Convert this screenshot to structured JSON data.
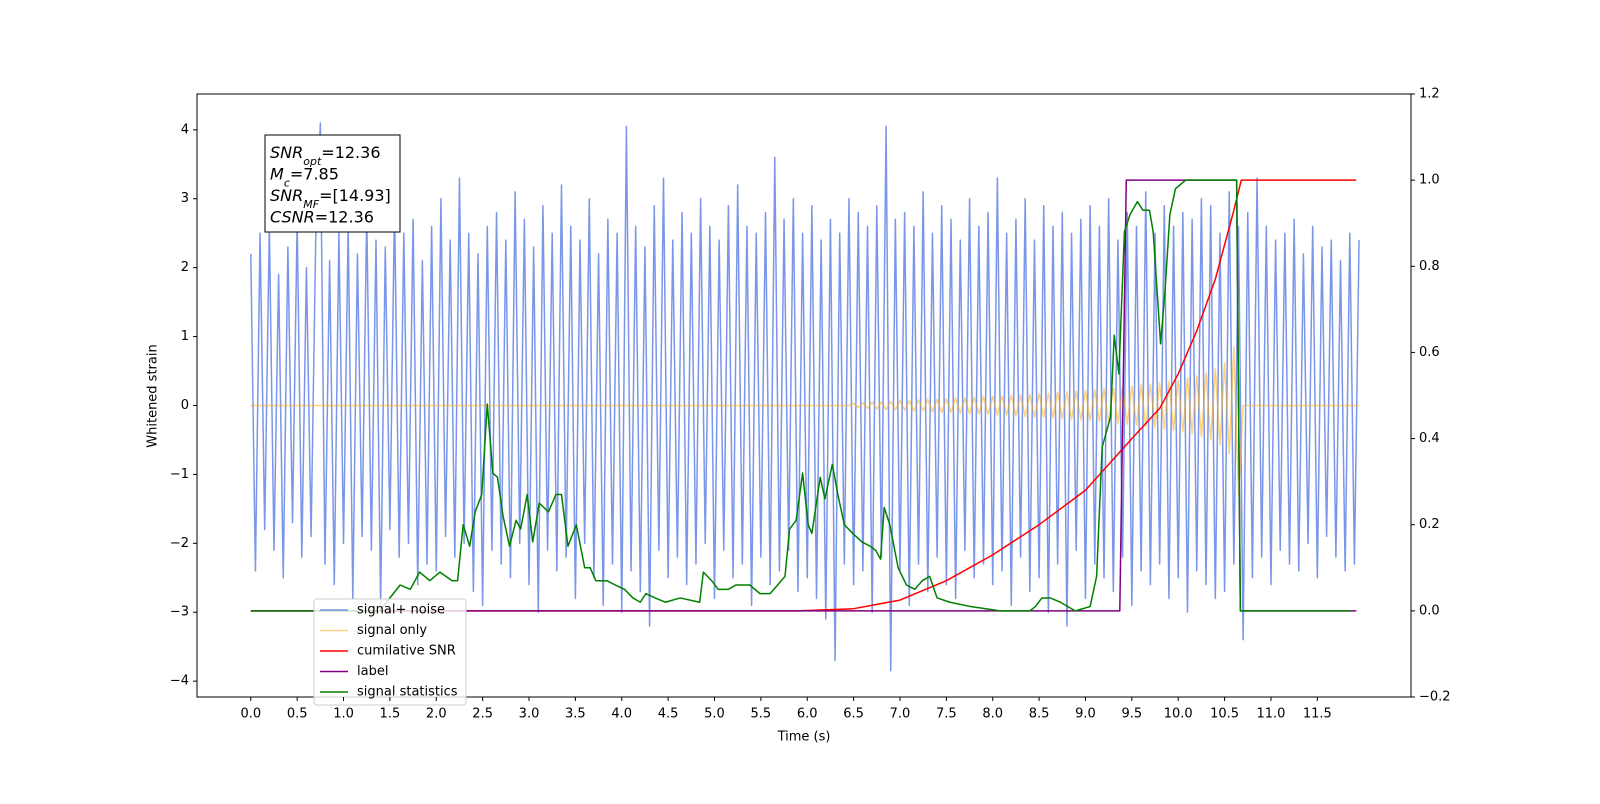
{
  "chart_data": {
    "type": "line",
    "xlabel": "Time (s)",
    "ylabel": "Whitened strain",
    "xlim": [
      -0.58,
      12.51
    ],
    "ylim": [
      -4.23,
      4.52
    ],
    "y2lim": [
      -0.2,
      1.2
    ],
    "xticks": [
      {
        "value": 0,
        "label": "0.0"
      },
      0.5,
      {
        "value": 1,
        "label": "1.0"
      },
      1.5,
      {
        "value": 2,
        "label": "2.0"
      },
      2.5,
      {
        "value": 3,
        "label": "3.0"
      },
      3.5,
      {
        "value": 4,
        "label": "4.0"
      },
      4.5,
      {
        "value": 5,
        "label": "5.0"
      },
      5.5,
      {
        "value": 6,
        "label": "6.0"
      },
      6.5,
      {
        "value": 7,
        "label": "7.0"
      },
      7.5,
      {
        "value": 8,
        "label": "8.0"
      },
      8.5,
      {
        "value": 9,
        "label": "9.0"
      },
      9.5,
      {
        "value": 10,
        "label": "10.0"
      },
      10.5,
      {
        "value": 11,
        "label": "11.0"
      },
      11.5
    ],
    "yticks": [
      {
        "value": -4,
        "label": "−4"
      },
      {
        "value": -3,
        "label": "−3"
      },
      {
        "value": -2,
        "label": "−2"
      },
      {
        "value": -1,
        "label": "−1"
      },
      0,
      1,
      2,
      3,
      4
    ],
    "y2ticks": [
      {
        "value": -0.2,
        "label": "−0.2"
      },
      {
        "value": 0,
        "label": "0.0"
      },
      0.2,
      0.4,
      0.6,
      0.8,
      {
        "value": 1,
        "label": "1.0"
      },
      {
        "value": 1.2,
        "label": "1.2"
      }
    ],
    "legend": "lower left",
    "annotation": [
      {
        "name": "SNR",
        "sub": "opt",
        "text": "=12.36"
      },
      {
        "name": "M",
        "sub": "c",
        "text": "=7.85"
      },
      {
        "name": "SNR",
        "sub": "MF",
        "text": "=[14.93]"
      },
      {
        "name": "CSNR",
        "text": "=12.36"
      }
    ],
    "x": [
      0,
      0.05,
      0.1,
      0.15,
      0.2,
      0.25,
      0.3,
      0.35,
      0.4,
      0.45,
      0.5,
      0.55,
      0.6,
      0.65,
      0.7,
      0.75,
      0.8,
      0.85,
      0.9,
      0.95,
      1,
      1.05,
      1.1,
      1.15,
      1.2,
      1.25,
      1.3,
      1.35,
      1.4,
      1.45,
      1.5,
      1.55,
      1.6,
      1.65,
      1.7,
      1.75,
      1.8,
      1.85,
      1.9,
      1.95,
      2,
      2.05,
      2.1,
      2.15,
      2.2,
      2.25,
      2.3,
      2.35,
      2.4,
      2.45,
      2.5,
      2.55,
      2.6,
      2.65,
      2.7,
      2.75,
      2.8,
      2.85,
      2.9,
      2.95,
      3,
      3.05,
      3.1,
      3.15,
      3.2,
      3.25,
      3.3,
      3.35,
      3.4,
      3.45,
      3.5,
      3.55,
      3.6,
      3.65,
      3.7,
      3.75,
      3.8,
      3.85,
      3.9,
      3.95,
      4,
      4.05,
      4.1,
      4.15,
      4.2,
      4.25,
      4.3,
      4.35,
      4.4,
      4.45,
      4.5,
      4.55,
      4.6,
      4.65,
      4.7,
      4.75,
      4.8,
      4.85,
      4.9,
      4.95,
      5,
      5.05,
      5.1,
      5.15,
      5.2,
      5.25,
      5.3,
      5.35,
      5.4,
      5.45,
      5.5,
      5.55,
      5.6,
      5.65,
      5.7,
      5.75,
      5.8,
      5.85,
      5.9,
      5.95,
      6,
      6.05,
      6.1,
      6.15,
      6.2,
      6.25,
      6.3,
      6.35,
      6.4,
      6.45,
      6.5,
      6.55,
      6.6,
      6.65,
      6.7,
      6.75,
      6.8,
      6.85,
      6.9,
      6.95,
      7,
      7.05,
      7.1,
      7.15,
      7.2,
      7.25,
      7.3,
      7.35,
      7.4,
      7.45,
      7.5,
      7.55,
      7.6,
      7.65,
      7.7,
      7.75,
      7.8,
      7.85,
      7.9,
      7.95,
      8,
      8.05,
      8.1,
      8.15,
      8.2,
      8.25,
      8.3,
      8.35,
      8.4,
      8.45,
      8.5,
      8.55,
      8.6,
      8.65,
      8.7,
      8.75,
      8.8,
      8.85,
      8.9,
      8.95,
      9,
      9.05,
      9.1,
      9.15,
      9.2,
      9.25,
      9.3,
      9.35,
      9.4,
      9.45,
      9.5,
      9.55,
      9.6,
      9.65,
      9.7,
      9.75,
      9.8,
      9.85,
      9.9,
      9.95,
      10,
      10.05,
      10.1,
      10.15,
      10.2,
      10.25,
      10.3,
      10.35,
      10.4,
      10.45,
      10.5,
      10.55,
      10.6,
      10.65,
      10.7,
      10.75,
      10.8,
      10.85,
      10.9,
      10.95,
      11,
      11.05,
      11.1,
      11.15,
      11.2,
      11.25,
      11.3,
      11.35,
      11.4,
      11.45,
      11.5,
      11.55,
      11.6,
      11.65,
      11.7,
      11.75,
      11.8,
      11.85,
      11.9,
      11.95
    ],
    "series": [
      {
        "name": "signal+ noise",
        "color": "royalblue",
        "alpha": 0.7,
        "values": [
          2.2,
          -2.4,
          2.5,
          -1.8,
          2.6,
          -2.1,
          1.9,
          -2.5,
          2.3,
          -1.7,
          2.7,
          -2.2,
          2.0,
          -1.9,
          2.4,
          4.1,
          -2.3,
          2.1,
          -2.6,
          2.5,
          -2.0,
          2.6,
          -2.8,
          2.2,
          -1.9,
          2.8,
          -2.1,
          2.4,
          -2.9,
          2.3,
          -1.8,
          2.9,
          -2.2,
          2.5,
          -2.0,
          2.7,
          -2.6,
          2.1,
          -2.3,
          2.6,
          -2.4,
          3.0,
          -1.9,
          2.4,
          -2.2,
          3.3,
          -2.0,
          2.5,
          -2.7,
          2.2,
          -2.9,
          2.6,
          -2.1,
          2.8,
          -2.3,
          2.4,
          -2.5,
          3.1,
          -2.0,
          2.7,
          -2.6,
          2.3,
          -3.0,
          2.9,
          -2.1,
          2.5,
          -2.4,
          3.2,
          -2.2,
          2.6,
          -2.8,
          2.4,
          -2.0,
          3.0,
          -2.5,
          2.2,
          -2.9,
          2.7,
          -2.3,
          2.5,
          -3.0,
          4.05,
          -2.4,
          2.6,
          -2.7,
          2.3,
          -3.2,
          2.9,
          -2.1,
          3.3,
          -2.5,
          2.4,
          -2.2,
          2.8,
          -2.6,
          2.5,
          -2.3,
          3.0,
          -2.0,
          2.6,
          -2.8,
          2.4,
          -2.1,
          2.9,
          -2.5,
          3.2,
          -2.3,
          2.6,
          -2.9,
          2.5,
          -2.2,
          2.8,
          -2.6,
          3.6,
          -2.4,
          2.7,
          -2.1,
          3.0,
          -2.7,
          2.5,
          -2.5,
          2.9,
          -2.8,
          2.4,
          -3.1,
          2.7,
          -3.7,
          2.5,
          -2.3,
          3.0,
          -2.6,
          2.8,
          -2.4,
          2.6,
          -3.0,
          2.9,
          -2.2,
          4.05,
          -3.85,
          2.7,
          -2.4,
          2.8,
          -2.9,
          2.6,
          -2.3,
          3.1,
          -2.7,
          2.5,
          -2.2,
          2.9,
          -2.6,
          2.7,
          -2.8,
          2.4,
          -2.1,
          3.0,
          -2.5,
          2.6,
          -2.3,
          2.8,
          -2.6,
          3.3,
          -2.4,
          2.5,
          -2.9,
          2.7,
          -2.2,
          3.0,
          -2.7,
          2.4,
          -2.5,
          2.9,
          -3.0,
          2.6,
          -2.3,
          2.8,
          -3.2,
          2.5,
          -2.1,
          2.7,
          -2.8,
          2.9,
          -2.3,
          2.6,
          -2.5,
          3.0,
          -2.7,
          2.4,
          -2.2,
          2.8,
          -2.9,
          2.6,
          -2.4,
          3.1,
          -2.6,
          2.5,
          -2.3,
          2.9,
          -2.8,
          2.6,
          -2.5,
          2.8,
          -3.0,
          2.7,
          -2.4,
          3.0,
          -2.6,
          2.9,
          -2.8,
          2.5,
          -2.7,
          3.1,
          -2.3,
          2.6,
          -3.4,
          2.8,
          -2.5,
          3.3,
          -2.2,
          2.6,
          -2.6,
          2.4,
          -2.1,
          2.5,
          -2.3,
          2.7,
          -2.4,
          2.2,
          -2.0,
          2.6,
          -2.5,
          2.3,
          -1.9,
          2.4,
          -2.2,
          2.1,
          -2.4,
          2.5,
          -2.3,
          2.4
        ]
      },
      {
        "name": "signal only",
        "color": "orange",
        "alpha": 0.5,
        "values": [
          0,
          0,
          0,
          0,
          0,
          0,
          0,
          0,
          0,
          0,
          0,
          0,
          0,
          0,
          0,
          0,
          0,
          0,
          0,
          0,
          0,
          0,
          0,
          0,
          0,
          0,
          0,
          0,
          0,
          0,
          0,
          0,
          0,
          0,
          0,
          0,
          0,
          0,
          0,
          0,
          0,
          0,
          0,
          0,
          0,
          0,
          0,
          0,
          0,
          0,
          0,
          0,
          0,
          0,
          0,
          0,
          0,
          0,
          0,
          0,
          0,
          0,
          0,
          0,
          0,
          0,
          0,
          0,
          0,
          0,
          0,
          0,
          0,
          0,
          0,
          0,
          0,
          0,
          0,
          0,
          0,
          0,
          0,
          0,
          0,
          0,
          0,
          0,
          0,
          0,
          0,
          0,
          0,
          0,
          0,
          0,
          0,
          0,
          0,
          0,
          0,
          0,
          0,
          0,
          0,
          0,
          0,
          0,
          0,
          0,
          0,
          0,
          0,
          0,
          0,
          0,
          0,
          0,
          0,
          0,
          0,
          0,
          0,
          0,
          0,
          0,
          0,
          0,
          0,
          0,
          0.03,
          -0.03,
          0.04,
          -0.04,
          0.05,
          -0.05,
          0.05,
          -0.06,
          0.06,
          -0.06,
          0.07,
          -0.07,
          0.07,
          -0.08,
          0.08,
          -0.08,
          0.09,
          -0.09,
          0.09,
          -0.1,
          0.1,
          -0.1,
          0.11,
          -0.11,
          0.11,
          -0.12,
          0.12,
          -0.12,
          0.13,
          -0.13,
          0.13,
          -0.14,
          0.14,
          -0.14,
          0.15,
          -0.15,
          0.15,
          -0.16,
          0.16,
          -0.17,
          0.17,
          -0.17,
          0.18,
          -0.18,
          0.19,
          -0.19,
          0.2,
          -0.2,
          0.21,
          -0.21,
          0.22,
          -0.22,
          0.23,
          -0.23,
          0.24,
          -0.25,
          0.25,
          -0.26,
          0.27,
          -0.27,
          0.28,
          -0.29,
          0.3,
          -0.3,
          0.31,
          -0.32,
          0.33,
          -0.34,
          0.35,
          -0.36,
          0.37,
          -0.38,
          0.4,
          -0.41,
          0.43,
          -0.45,
          0.47,
          -0.5,
          0.53,
          -0.57,
          0.62,
          -0.7,
          0.85,
          -1.3,
          0,
          0,
          0,
          0,
          0,
          0,
          0,
          0,
          0,
          0,
          0,
          0,
          0,
          0,
          0,
          0,
          0,
          0,
          0,
          0,
          0,
          0,
          0,
          0,
          0,
          0
        ]
      },
      {
        "name": "cumilative SNR",
        "color": "red",
        "axis": "y2",
        "x": [
          0,
          5.9,
          6.5,
          7.0,
          7.5,
          8.0,
          8.5,
          9.0,
          9.5,
          9.8,
          10.0,
          10.2,
          10.4,
          10.5,
          10.6,
          10.68,
          11.92
        ],
        "values": [
          0,
          0,
          0.005,
          0.025,
          0.07,
          0.13,
          0.2,
          0.28,
          0.4,
          0.47,
          0.55,
          0.65,
          0.77,
          0.85,
          0.93,
          1.0,
          1.0
        ]
      },
      {
        "name": "label",
        "color": "purple",
        "axis": "y2",
        "x": [
          0,
          9.37,
          9.44,
          10.63,
          10.67,
          11.92
        ],
        "values": [
          0,
          0,
          1,
          1,
          0,
          0
        ]
      },
      {
        "name": "signal statistics",
        "color": "green",
        "axis": "y2",
        "x": [
          0,
          1.39,
          1.61,
          1.72,
          1.82,
          1.93,
          2.04,
          2.17,
          2.23,
          2.29,
          2.36,
          2.42,
          2.49,
          2.55,
          2.61,
          2.66,
          2.72,
          2.79,
          2.86,
          2.91,
          2.98,
          3.04,
          3.11,
          3.21,
          3.29,
          3.35,
          3.42,
          3.51,
          3.6,
          3.66,
          3.72,
          3.84,
          3.93,
          4.03,
          4.12,
          4.2,
          4.26,
          4.36,
          4.47,
          4.63,
          4.84,
          4.88,
          4.97,
          5.04,
          5.15,
          5.23,
          5.3,
          5.38,
          5.49,
          5.6,
          5.76,
          5.81,
          5.88,
          5.95,
          6.01,
          6.05,
          6.14,
          6.19,
          6.27,
          6.33,
          6.4,
          6.49,
          6.59,
          6.68,
          6.74,
          6.79,
          6.83,
          6.89,
          6.98,
          7.07,
          7.16,
          7.24,
          7.32,
          7.4,
          7.54,
          7.76,
          8.08,
          8.4,
          8.46,
          8.53,
          8.62,
          8.73,
          8.89,
          9.05,
          9.12,
          9.18,
          9.27,
          9.31,
          9.36,
          9.42,
          9.48,
          9.56,
          9.62,
          9.69,
          9.73,
          9.81,
          9.86,
          9.91,
          9.97,
          10.08,
          10.63,
          10.67,
          11.86
        ],
        "values": [
          0,
          0,
          0.06,
          0.05,
          0.09,
          0.07,
          0.09,
          0.07,
          0.07,
          0.2,
          0.15,
          0.23,
          0.27,
          0.48,
          0.32,
          0.31,
          0.22,
          0.15,
          0.21,
          0.19,
          0.27,
          0.16,
          0.25,
          0.23,
          0.27,
          0.27,
          0.15,
          0.2,
          0.1,
          0.1,
          0.07,
          0.07,
          0.06,
          0.05,
          0.03,
          0.02,
          0.04,
          0.03,
          0.02,
          0.03,
          0.02,
          0.09,
          0.07,
          0.05,
          0.05,
          0.06,
          0.06,
          0.06,
          0.04,
          0.04,
          0.08,
          0.19,
          0.21,
          0.32,
          0.2,
          0.18,
          0.31,
          0.26,
          0.34,
          0.27,
          0.2,
          0.18,
          0.16,
          0.15,
          0.14,
          0.12,
          0.24,
          0.2,
          0.1,
          0.06,
          0.05,
          0.07,
          0.08,
          0.03,
          0.02,
          0.01,
          0,
          0,
          0.01,
          0.03,
          0.03,
          0.02,
          0,
          0.01,
          0.08,
          0.38,
          0.45,
          0.64,
          0.55,
          0.88,
          0.92,
          0.95,
          0.93,
          0.93,
          0.88,
          0.62,
          0.75,
          0.92,
          0.98,
          1.0,
          1.0,
          0,
          0
        ]
      }
    ]
  }
}
